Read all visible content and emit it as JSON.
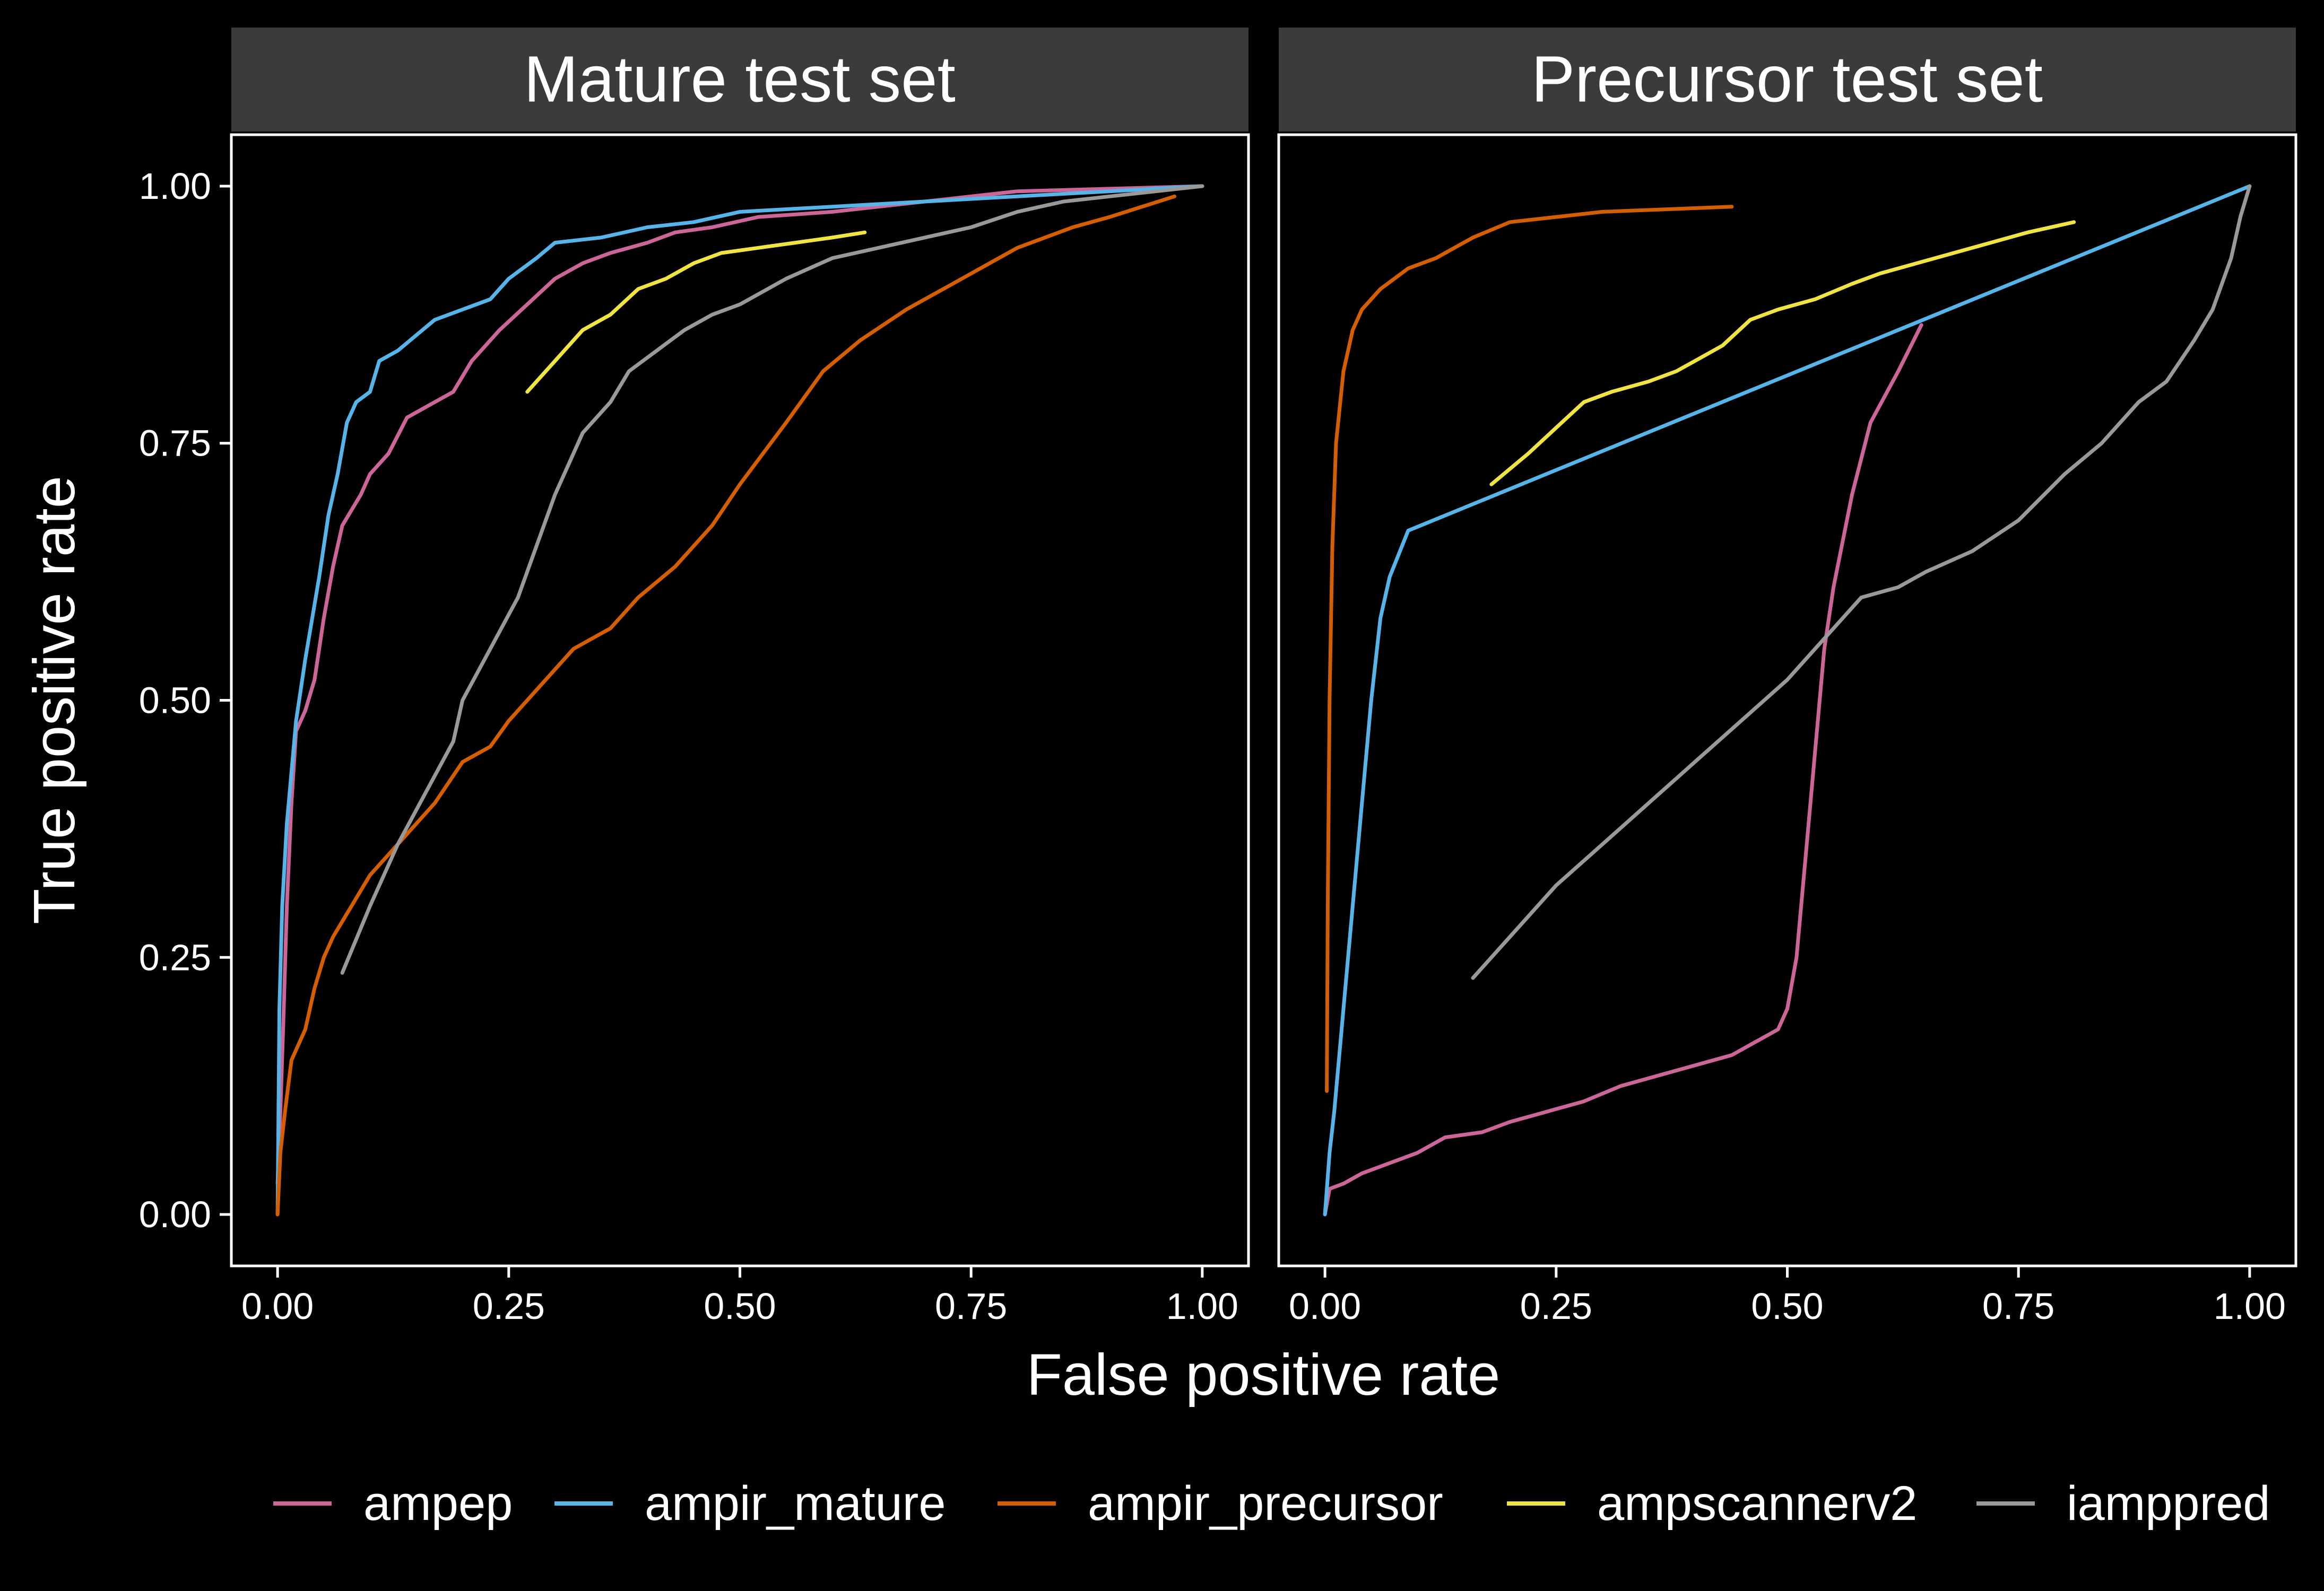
{
  "chart_data": {
    "type": "line",
    "xlabel": "False positive rate",
    "ylabel": "True positive rate",
    "xlim": [
      -0.05,
      1.05
    ],
    "ylim": [
      -0.05,
      1.05
    ],
    "x_ticks": [
      "0.00",
      "0.25",
      "0.50",
      "0.75",
      "1.00"
    ],
    "y_ticks": [
      "0.00",
      "0.25",
      "0.50",
      "0.75",
      "1.00"
    ],
    "tick_values": [
      0,
      0.25,
      0.5,
      0.75,
      1.0
    ],
    "legend_position": "bottom",
    "series": [
      {
        "name": "ampep",
        "color": "#CC6699"
      },
      {
        "name": "ampir_mature",
        "color": "#56B4E9"
      },
      {
        "name": "ampir_precursor",
        "color": "#D55E00"
      },
      {
        "name": "ampscannerv2",
        "color": "#F0E442"
      },
      {
        "name": "iamppred",
        "color": "#999999"
      }
    ],
    "panels": [
      {
        "title": "Mature test set",
        "lines": [
          {
            "series": "ampep",
            "points": [
              [
                0,
                0.03
              ],
              [
                0.003,
                0.1
              ],
              [
                0.006,
                0.18
              ],
              [
                0.01,
                0.3
              ],
              [
                0.015,
                0.4
              ],
              [
                0.02,
                0.47
              ],
              [
                0.03,
                0.49
              ],
              [
                0.04,
                0.52
              ],
              [
                0.05,
                0.58
              ],
              [
                0.06,
                0.63
              ],
              [
                0.07,
                0.67
              ],
              [
                0.09,
                0.7
              ],
              [
                0.1,
                0.72
              ],
              [
                0.12,
                0.74
              ],
              [
                0.14,
                0.775
              ],
              [
                0.17,
                0.79
              ],
              [
                0.19,
                0.8
              ],
              [
                0.21,
                0.83
              ],
              [
                0.24,
                0.86
              ],
              [
                0.27,
                0.885
              ],
              [
                0.3,
                0.91
              ],
              [
                0.33,
                0.925
              ],
              [
                0.36,
                0.935
              ],
              [
                0.4,
                0.945
              ],
              [
                0.43,
                0.955
              ],
              [
                0.47,
                0.96
              ],
              [
                0.52,
                0.97
              ],
              [
                0.6,
                0.975
              ],
              [
                0.7,
                0.985
              ],
              [
                0.8,
                0.995
              ],
              [
                1.0,
                1.0
              ]
            ]
          },
          {
            "series": "ampir_mature",
            "points": [
              [
                0,
                0.0
              ],
              [
                0.002,
                0.2
              ],
              [
                0.005,
                0.3
              ],
              [
                0.01,
                0.38
              ],
              [
                0.02,
                0.48
              ],
              [
                0.03,
                0.54
              ],
              [
                0.045,
                0.62
              ],
              [
                0.055,
                0.68
              ],
              [
                0.065,
                0.72
              ],
              [
                0.075,
                0.77
              ],
              [
                0.085,
                0.79
              ],
              [
                0.1,
                0.8
              ],
              [
                0.11,
                0.83
              ],
              [
                0.13,
                0.84
              ],
              [
                0.15,
                0.855
              ],
              [
                0.17,
                0.87
              ],
              [
                0.2,
                0.88
              ],
              [
                0.23,
                0.89
              ],
              [
                0.25,
                0.91
              ],
              [
                0.28,
                0.93
              ],
              [
                0.3,
                0.945
              ],
              [
                0.35,
                0.95
              ],
              [
                0.4,
                0.96
              ],
              [
                0.45,
                0.965
              ],
              [
                0.5,
                0.975
              ],
              [
                0.6,
                0.98
              ],
              [
                0.7,
                0.985
              ],
              [
                0.8,
                0.99
              ],
              [
                1.0,
                1.0
              ]
            ]
          },
          {
            "series": "ampir_precursor",
            "points": [
              [
                0,
                0.0
              ],
              [
                0.003,
                0.06
              ],
              [
                0.008,
                0.1
              ],
              [
                0.015,
                0.15
              ],
              [
                0.03,
                0.18
              ],
              [
                0.04,
                0.22
              ],
              [
                0.05,
                0.25
              ],
              [
                0.06,
                0.27
              ],
              [
                0.08,
                0.3
              ],
              [
                0.1,
                0.33
              ],
              [
                0.12,
                0.35
              ],
              [
                0.15,
                0.38
              ],
              [
                0.17,
                0.4
              ],
              [
                0.2,
                0.44
              ],
              [
                0.23,
                0.455
              ],
              [
                0.25,
                0.48
              ],
              [
                0.28,
                0.51
              ],
              [
                0.32,
                0.55
              ],
              [
                0.36,
                0.57
              ],
              [
                0.39,
                0.6
              ],
              [
                0.43,
                0.63
              ],
              [
                0.47,
                0.67
              ],
              [
                0.5,
                0.71
              ],
              [
                0.55,
                0.77
              ],
              [
                0.59,
                0.82
              ],
              [
                0.63,
                0.85
              ],
              [
                0.68,
                0.88
              ],
              [
                0.74,
                0.91
              ],
              [
                0.8,
                0.94
              ],
              [
                0.86,
                0.96
              ],
              [
                0.9,
                0.97
              ],
              [
                0.97,
                0.99
              ]
            ]
          },
          {
            "series": "ampscannerv2",
            "points": [
              [
                0.27,
                0.8
              ],
              [
                0.3,
                0.83
              ],
              [
                0.33,
                0.86
              ],
              [
                0.36,
                0.875
              ],
              [
                0.39,
                0.9
              ],
              [
                0.42,
                0.91
              ],
              [
                0.45,
                0.925
              ],
              [
                0.48,
                0.935
              ],
              [
                0.52,
                0.94
              ],
              [
                0.56,
                0.945
              ],
              [
                0.6,
                0.95
              ],
              [
                0.635,
                0.955
              ]
            ]
          },
          {
            "series": "iamppred",
            "points": [
              [
                0.07,
                0.235
              ],
              [
                0.1,
                0.3
              ],
              [
                0.13,
                0.36
              ],
              [
                0.16,
                0.41
              ],
              [
                0.19,
                0.46
              ],
              [
                0.2,
                0.5
              ],
              [
                0.23,
                0.55
              ],
              [
                0.26,
                0.6
              ],
              [
                0.28,
                0.65
              ],
              [
                0.3,
                0.7
              ],
              [
                0.33,
                0.76
              ],
              [
                0.36,
                0.79
              ],
              [
                0.38,
                0.82
              ],
              [
                0.41,
                0.84
              ],
              [
                0.44,
                0.86
              ],
              [
                0.47,
                0.875
              ],
              [
                0.5,
                0.885
              ],
              [
                0.55,
                0.91
              ],
              [
                0.6,
                0.93
              ],
              [
                0.65,
                0.94
              ],
              [
                0.7,
                0.95
              ],
              [
                0.75,
                0.96
              ],
              [
                0.8,
                0.975
              ],
              [
                0.85,
                0.985
              ],
              [
                0.9,
                0.99
              ],
              [
                0.95,
                0.995
              ],
              [
                1.0,
                1.0
              ]
            ]
          }
        ]
      },
      {
        "title": "Precursor test set",
        "lines": [
          {
            "series": "ampep",
            "points": [
              [
                0,
                0.0
              ],
              [
                0.005,
                0.025
              ],
              [
                0.02,
                0.03
              ],
              [
                0.04,
                0.04
              ],
              [
                0.07,
                0.05
              ],
              [
                0.1,
                0.06
              ],
              [
                0.13,
                0.075
              ],
              [
                0.17,
                0.08
              ],
              [
                0.2,
                0.09
              ],
              [
                0.24,
                0.1
              ],
              [
                0.28,
                0.11
              ],
              [
                0.32,
                0.125
              ],
              [
                0.36,
                0.135
              ],
              [
                0.4,
                0.145
              ],
              [
                0.44,
                0.155
              ],
              [
                0.47,
                0.17
              ],
              [
                0.49,
                0.18
              ],
              [
                0.5,
                0.2
              ],
              [
                0.51,
                0.25
              ],
              [
                0.515,
                0.3
              ],
              [
                0.52,
                0.35
              ],
              [
                0.53,
                0.45
              ],
              [
                0.54,
                0.55
              ],
              [
                0.55,
                0.61
              ],
              [
                0.57,
                0.7
              ],
              [
                0.59,
                0.77
              ],
              [
                0.62,
                0.82
              ],
              [
                0.645,
                0.865
              ]
            ]
          },
          {
            "series": "ampir_mature",
            "points": [
              [
                0,
                0.0
              ],
              [
                0.005,
                0.06
              ],
              [
                0.01,
                0.1
              ],
              [
                0.02,
                0.2
              ],
              [
                0.03,
                0.3
              ],
              [
                0.04,
                0.4
              ],
              [
                0.05,
                0.5
              ],
              [
                0.06,
                0.58
              ],
              [
                0.07,
                0.62
              ],
              [
                0.09,
                0.665
              ],
              [
                1.0,
                1.0
              ]
            ]
          },
          {
            "series": "ampir_precursor",
            "points": [
              [
                0.002,
                0.12
              ],
              [
                0.003,
                0.3
              ],
              [
                0.005,
                0.5
              ],
              [
                0.008,
                0.65
              ],
              [
                0.012,
                0.75
              ],
              [
                0.02,
                0.82
              ],
              [
                0.03,
                0.86
              ],
              [
                0.04,
                0.88
              ],
              [
                0.06,
                0.9
              ],
              [
                0.09,
                0.92
              ],
              [
                0.12,
                0.93
              ],
              [
                0.16,
                0.95
              ],
              [
                0.2,
                0.965
              ],
              [
                0.3,
                0.975
              ],
              [
                0.44,
                0.98
              ]
            ]
          },
          {
            "series": "ampscannerv2",
            "points": [
              [
                0.18,
                0.71
              ],
              [
                0.22,
                0.74
              ],
              [
                0.25,
                0.765
              ],
              [
                0.28,
                0.79
              ],
              [
                0.31,
                0.8
              ],
              [
                0.35,
                0.81
              ],
              [
                0.38,
                0.82
              ],
              [
                0.41,
                0.835
              ],
              [
                0.43,
                0.845
              ],
              [
                0.46,
                0.87
              ],
              [
                0.49,
                0.88
              ],
              [
                0.53,
                0.89
              ],
              [
                0.57,
                0.905
              ],
              [
                0.6,
                0.915
              ],
              [
                0.64,
                0.925
              ],
              [
                0.68,
                0.935
              ],
              [
                0.72,
                0.945
              ],
              [
                0.76,
                0.955
              ],
              [
                0.81,
                0.965
              ]
            ]
          },
          {
            "series": "iamppred",
            "points": [
              [
                0.16,
                0.23
              ],
              [
                0.2,
                0.27
              ],
              [
                0.25,
                0.32
              ],
              [
                0.3,
                0.36
              ],
              [
                0.35,
                0.4
              ],
              [
                0.4,
                0.44
              ],
              [
                0.45,
                0.48
              ],
              [
                0.5,
                0.52
              ],
              [
                0.55,
                0.57
              ],
              [
                0.58,
                0.6
              ],
              [
                0.62,
                0.61
              ],
              [
                0.65,
                0.625
              ],
              [
                0.7,
                0.645
              ],
              [
                0.75,
                0.675
              ],
              [
                0.8,
                0.72
              ],
              [
                0.84,
                0.75
              ],
              [
                0.88,
                0.79
              ],
              [
                0.91,
                0.81
              ],
              [
                0.94,
                0.85
              ],
              [
                0.96,
                0.88
              ],
              [
                0.98,
                0.93
              ],
              [
                0.99,
                0.97
              ],
              [
                1.0,
                1.0
              ]
            ]
          }
        ]
      }
    ]
  }
}
